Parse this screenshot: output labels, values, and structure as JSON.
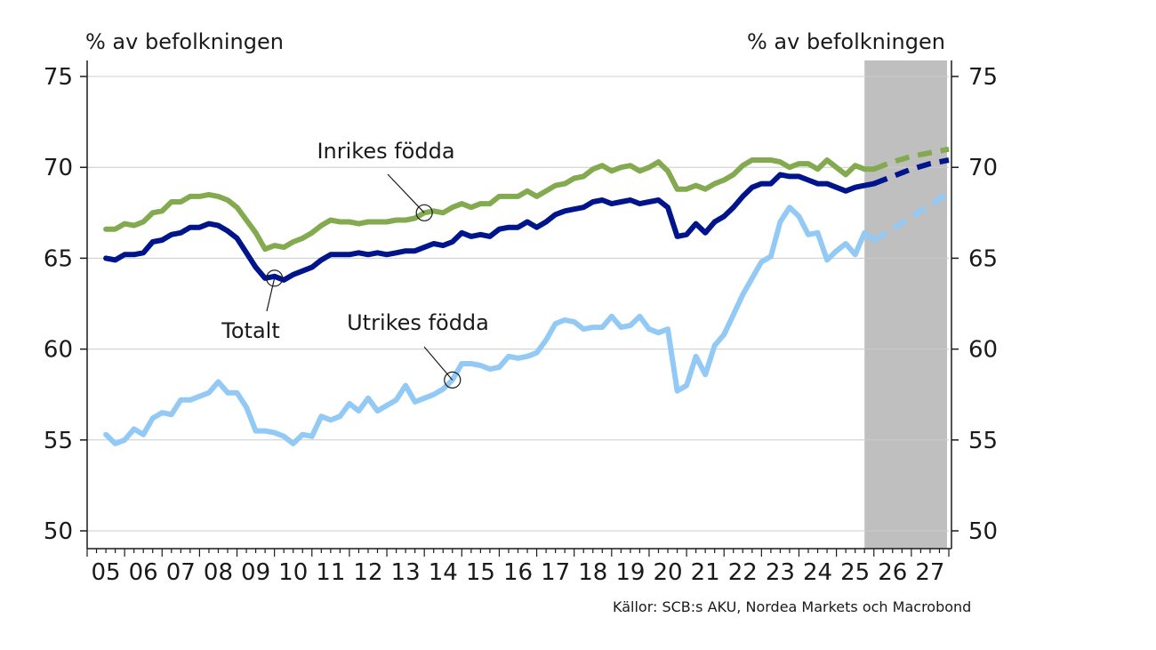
{
  "texts": {
    "y_unit_left": "% av befolkningen",
    "y_unit_right": "% av befolkningen",
    "source": "Källor: SCB:s AKU, Nordea Markets och Macrobond"
  },
  "chart_data": {
    "type": "line",
    "title": "",
    "xlabel": "",
    "ylabel": "% av befolkningen",
    "y_secondary_label": "% av befolkningen",
    "ylim": [
      50,
      75
    ],
    "yticks": [
      50,
      55,
      60,
      65,
      70,
      75
    ],
    "xlim": [
      2005.0,
      2028.0
    ],
    "xtick_labels": [
      "05",
      "06",
      "07",
      "08",
      "09",
      "10",
      "11",
      "12",
      "13",
      "14",
      "15",
      "16",
      "17",
      "18",
      "19",
      "20",
      "21",
      "22",
      "23",
      "24",
      "25",
      "26",
      "27"
    ],
    "grid": true,
    "forecast_shading": {
      "start": 2025.75,
      "end": 2028.0,
      "color": "#bfbfbf"
    },
    "series": [
      {
        "name": "Inrikes födda",
        "color": "#84aa4f",
        "historical": [
          [
            2005.5,
            66.6
          ],
          [
            2005.75,
            66.6
          ],
          [
            2006.0,
            66.9
          ],
          [
            2006.25,
            66.8
          ],
          [
            2006.5,
            67.0
          ],
          [
            2006.75,
            67.5
          ],
          [
            2007.0,
            67.6
          ],
          [
            2007.25,
            68.1
          ],
          [
            2007.5,
            68.1
          ],
          [
            2007.75,
            68.4
          ],
          [
            2008.0,
            68.4
          ],
          [
            2008.25,
            68.5
          ],
          [
            2008.5,
            68.4
          ],
          [
            2008.75,
            68.2
          ],
          [
            2009.0,
            67.8
          ],
          [
            2009.25,
            67.1
          ],
          [
            2009.5,
            66.4
          ],
          [
            2009.75,
            65.5
          ],
          [
            2010.0,
            65.7
          ],
          [
            2010.25,
            65.6
          ],
          [
            2010.5,
            65.9
          ],
          [
            2010.75,
            66.1
          ],
          [
            2011.0,
            66.4
          ],
          [
            2011.25,
            66.8
          ],
          [
            2011.5,
            67.1
          ],
          [
            2011.75,
            67.0
          ],
          [
            2012.0,
            67.0
          ],
          [
            2012.25,
            66.9
          ],
          [
            2012.5,
            67.0
          ],
          [
            2012.75,
            67.0
          ],
          [
            2013.0,
            67.0
          ],
          [
            2013.25,
            67.1
          ],
          [
            2013.5,
            67.1
          ],
          [
            2013.75,
            67.2
          ],
          [
            2014.0,
            67.5
          ],
          [
            2014.25,
            67.6
          ],
          [
            2014.5,
            67.5
          ],
          [
            2014.75,
            67.8
          ],
          [
            2015.0,
            68.0
          ],
          [
            2015.25,
            67.8
          ],
          [
            2015.5,
            68.0
          ],
          [
            2015.75,
            68.0
          ],
          [
            2016.0,
            68.4
          ],
          [
            2016.25,
            68.4
          ],
          [
            2016.5,
            68.4
          ],
          [
            2016.75,
            68.7
          ],
          [
            2017.0,
            68.4
          ],
          [
            2017.25,
            68.7
          ],
          [
            2017.5,
            69.0
          ],
          [
            2017.75,
            69.1
          ],
          [
            2018.0,
            69.4
          ],
          [
            2018.25,
            69.5
          ],
          [
            2018.5,
            69.9
          ],
          [
            2018.75,
            70.1
          ],
          [
            2019.0,
            69.8
          ],
          [
            2019.25,
            70.0
          ],
          [
            2019.5,
            70.1
          ],
          [
            2019.75,
            69.8
          ],
          [
            2020.0,
            70.0
          ],
          [
            2020.25,
            70.3
          ],
          [
            2020.5,
            69.8
          ],
          [
            2020.75,
            68.8
          ],
          [
            2021.0,
            68.8
          ],
          [
            2021.25,
            69.0
          ],
          [
            2021.5,
            68.8
          ],
          [
            2021.75,
            69.1
          ],
          [
            2022.0,
            69.3
          ],
          [
            2022.25,
            69.6
          ],
          [
            2022.5,
            70.1
          ],
          [
            2022.75,
            70.4
          ],
          [
            2023.0,
            70.4
          ],
          [
            2023.25,
            70.4
          ],
          [
            2023.5,
            70.3
          ],
          [
            2023.75,
            70.0
          ],
          [
            2024.0,
            70.2
          ],
          [
            2024.25,
            70.2
          ],
          [
            2024.5,
            69.9
          ],
          [
            2024.75,
            70.4
          ],
          [
            2025.0,
            70.0
          ],
          [
            2025.25,
            69.6
          ],
          [
            2025.5,
            70.1
          ],
          [
            2025.75,
            69.9
          ],
          [
            2026.0,
            69.9
          ]
        ],
        "forecast": [
          [
            2026.0,
            69.9
          ],
          [
            2026.5,
            70.3
          ],
          [
            2027.0,
            70.6
          ],
          [
            2027.5,
            70.8
          ],
          [
            2028.0,
            71.0
          ]
        ]
      },
      {
        "name": "Totalt",
        "color": "#00148c",
        "historical": [
          [
            2005.5,
            65.0
          ],
          [
            2005.75,
            64.9
          ],
          [
            2006.0,
            65.2
          ],
          [
            2006.25,
            65.2
          ],
          [
            2006.5,
            65.3
          ],
          [
            2006.75,
            65.9
          ],
          [
            2007.0,
            66.0
          ],
          [
            2007.25,
            66.3
          ],
          [
            2007.5,
            66.4
          ],
          [
            2007.75,
            66.7
          ],
          [
            2008.0,
            66.7
          ],
          [
            2008.25,
            66.9
          ],
          [
            2008.5,
            66.8
          ],
          [
            2008.75,
            66.5
          ],
          [
            2009.0,
            66.1
          ],
          [
            2009.25,
            65.3
          ],
          [
            2009.5,
            64.5
          ],
          [
            2009.75,
            63.9
          ],
          [
            2010.0,
            64.0
          ],
          [
            2010.25,
            63.8
          ],
          [
            2010.5,
            64.1
          ],
          [
            2010.75,
            64.3
          ],
          [
            2011.0,
            64.5
          ],
          [
            2011.25,
            64.9
          ],
          [
            2011.5,
            65.2
          ],
          [
            2011.75,
            65.2
          ],
          [
            2012.0,
            65.2
          ],
          [
            2012.25,
            65.3
          ],
          [
            2012.5,
            65.2
          ],
          [
            2012.75,
            65.3
          ],
          [
            2013.0,
            65.2
          ],
          [
            2013.25,
            65.3
          ],
          [
            2013.5,
            65.4
          ],
          [
            2013.75,
            65.4
          ],
          [
            2014.0,
            65.6
          ],
          [
            2014.25,
            65.8
          ],
          [
            2014.5,
            65.7
          ],
          [
            2014.75,
            65.9
          ],
          [
            2015.0,
            66.4
          ],
          [
            2015.25,
            66.2
          ],
          [
            2015.5,
            66.3
          ],
          [
            2015.75,
            66.2
          ],
          [
            2016.0,
            66.6
          ],
          [
            2016.25,
            66.7
          ],
          [
            2016.5,
            66.7
          ],
          [
            2016.75,
            67.0
          ],
          [
            2017.0,
            66.7
          ],
          [
            2017.25,
            67.0
          ],
          [
            2017.5,
            67.4
          ],
          [
            2017.75,
            67.6
          ],
          [
            2018.0,
            67.7
          ],
          [
            2018.25,
            67.8
          ],
          [
            2018.5,
            68.1
          ],
          [
            2018.75,
            68.2
          ],
          [
            2019.0,
            68.0
          ],
          [
            2019.25,
            68.1
          ],
          [
            2019.5,
            68.2
          ],
          [
            2019.75,
            68.0
          ],
          [
            2020.0,
            68.1
          ],
          [
            2020.25,
            68.2
          ],
          [
            2020.5,
            67.8
          ],
          [
            2020.75,
            66.2
          ],
          [
            2021.0,
            66.3
          ],
          [
            2021.25,
            66.9
          ],
          [
            2021.5,
            66.4
          ],
          [
            2021.75,
            67.0
          ],
          [
            2022.0,
            67.3
          ],
          [
            2022.25,
            67.8
          ],
          [
            2022.5,
            68.4
          ],
          [
            2022.75,
            68.9
          ],
          [
            2023.0,
            69.1
          ],
          [
            2023.25,
            69.1
          ],
          [
            2023.5,
            69.6
          ],
          [
            2023.75,
            69.5
          ],
          [
            2024.0,
            69.5
          ],
          [
            2024.25,
            69.3
          ],
          [
            2024.5,
            69.1
          ],
          [
            2024.75,
            69.1
          ],
          [
            2025.0,
            68.9
          ],
          [
            2025.25,
            68.7
          ],
          [
            2025.5,
            68.9
          ],
          [
            2025.75,
            69.0
          ],
          [
            2026.0,
            69.1
          ]
        ],
        "forecast": [
          [
            2026.0,
            69.1
          ],
          [
            2026.5,
            69.5
          ],
          [
            2027.0,
            69.9
          ],
          [
            2027.5,
            70.2
          ],
          [
            2028.0,
            70.4
          ]
        ]
      },
      {
        "name": "Utrikes födda",
        "color": "#93c9f5",
        "historical": [
          [
            2005.5,
            55.3
          ],
          [
            2005.75,
            54.8
          ],
          [
            2006.0,
            55.0
          ],
          [
            2006.25,
            55.6
          ],
          [
            2006.5,
            55.3
          ],
          [
            2006.75,
            56.2
          ],
          [
            2007.0,
            56.5
          ],
          [
            2007.25,
            56.4
          ],
          [
            2007.5,
            57.2
          ],
          [
            2007.75,
            57.2
          ],
          [
            2008.0,
            57.4
          ],
          [
            2008.25,
            57.6
          ],
          [
            2008.5,
            58.2
          ],
          [
            2008.75,
            57.6
          ],
          [
            2009.0,
            57.6
          ],
          [
            2009.25,
            56.8
          ],
          [
            2009.5,
            55.5
          ],
          [
            2009.75,
            55.5
          ],
          [
            2010.0,
            55.4
          ],
          [
            2010.25,
            55.2
          ],
          [
            2010.5,
            54.8
          ],
          [
            2010.75,
            55.3
          ],
          [
            2011.0,
            55.2
          ],
          [
            2011.25,
            56.3
          ],
          [
            2011.5,
            56.1
          ],
          [
            2011.75,
            56.3
          ],
          [
            2012.0,
            57.0
          ],
          [
            2012.25,
            56.6
          ],
          [
            2012.5,
            57.3
          ],
          [
            2012.75,
            56.6
          ],
          [
            2013.0,
            56.9
          ],
          [
            2013.25,
            57.2
          ],
          [
            2013.5,
            58.0
          ],
          [
            2013.75,
            57.1
          ],
          [
            2014.0,
            57.3
          ],
          [
            2014.25,
            57.5
          ],
          [
            2014.5,
            57.8
          ],
          [
            2014.75,
            58.3
          ],
          [
            2015.0,
            59.2
          ],
          [
            2015.25,
            59.2
          ],
          [
            2015.5,
            59.1
          ],
          [
            2015.75,
            58.9
          ],
          [
            2016.0,
            59.0
          ],
          [
            2016.25,
            59.6
          ],
          [
            2016.5,
            59.5
          ],
          [
            2016.75,
            59.6
          ],
          [
            2017.0,
            59.8
          ],
          [
            2017.25,
            60.5
          ],
          [
            2017.5,
            61.4
          ],
          [
            2017.75,
            61.6
          ],
          [
            2018.0,
            61.5
          ],
          [
            2018.25,
            61.1
          ],
          [
            2018.5,
            61.2
          ],
          [
            2018.75,
            61.2
          ],
          [
            2019.0,
            61.8
          ],
          [
            2019.25,
            61.2
          ],
          [
            2019.5,
            61.3
          ],
          [
            2019.75,
            61.8
          ],
          [
            2020.0,
            61.1
          ],
          [
            2020.25,
            60.9
          ],
          [
            2020.5,
            61.1
          ],
          [
            2020.75,
            57.7
          ],
          [
            2021.0,
            58.0
          ],
          [
            2021.25,
            59.6
          ],
          [
            2021.5,
            58.6
          ],
          [
            2021.75,
            60.2
          ],
          [
            2022.0,
            60.8
          ],
          [
            2022.25,
            61.9
          ],
          [
            2022.5,
            63.0
          ],
          [
            2022.75,
            63.9
          ],
          [
            2023.0,
            64.8
          ],
          [
            2023.25,
            65.1
          ],
          [
            2023.5,
            67.0
          ],
          [
            2023.75,
            67.8
          ],
          [
            2024.0,
            67.3
          ],
          [
            2024.25,
            66.3
          ],
          [
            2024.5,
            66.4
          ],
          [
            2024.75,
            64.9
          ],
          [
            2025.0,
            65.4
          ],
          [
            2025.25,
            65.8
          ],
          [
            2025.5,
            65.2
          ],
          [
            2025.75,
            66.4
          ],
          [
            2026.0,
            66.0
          ]
        ],
        "forecast": [
          [
            2026.0,
            66.0
          ],
          [
            2026.5,
            66.6
          ],
          [
            2027.0,
            67.3
          ],
          [
            2027.5,
            67.9
          ],
          [
            2028.0,
            68.6
          ]
        ]
      }
    ],
    "annotations": [
      {
        "text": "Inrikes födda",
        "series": "Inrikes födda",
        "x": 2014.0,
        "y": 67.5
      },
      {
        "text": "Totalt",
        "series": "Totalt",
        "x": 2010.0,
        "y": 63.9
      },
      {
        "text": "Utrikes födda",
        "series": "Utrikes födda",
        "x": 2014.75,
        "y": 58.3
      }
    ]
  }
}
